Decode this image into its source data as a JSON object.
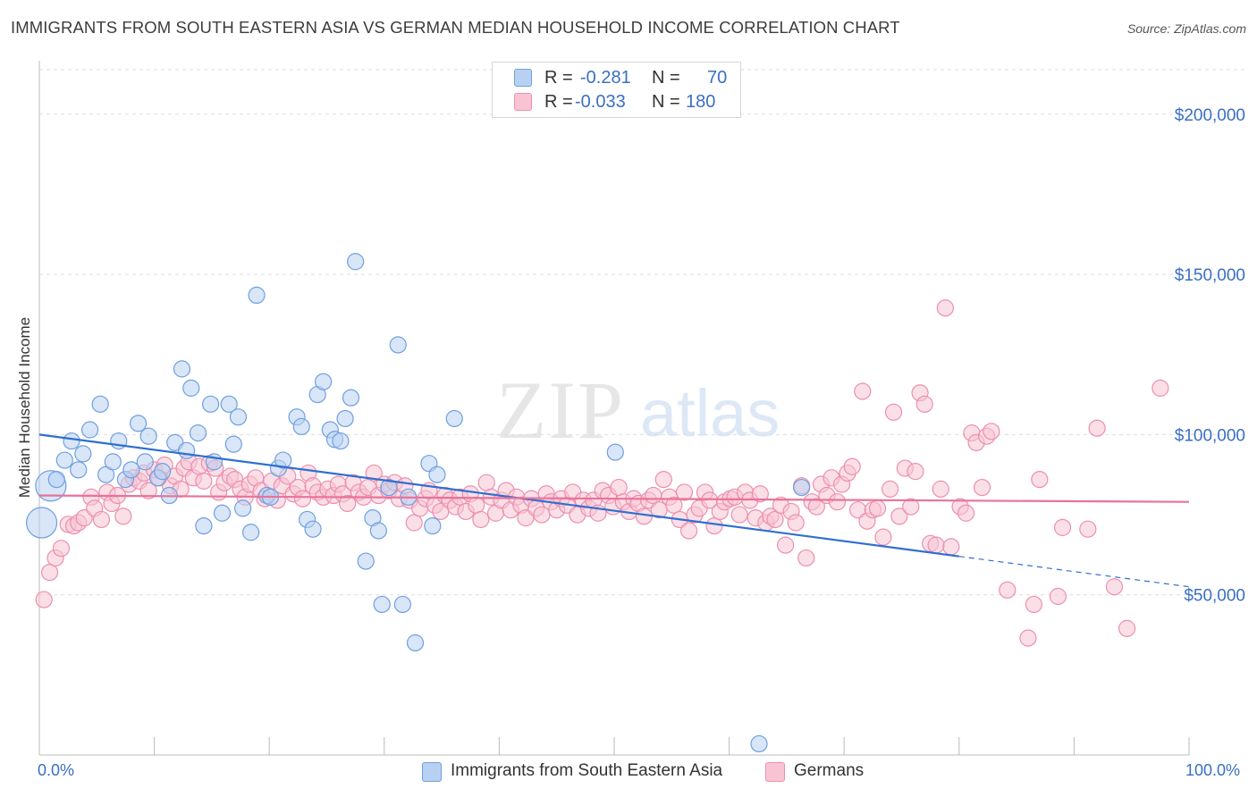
{
  "title": "IMMIGRANTS FROM SOUTH EASTERN ASIA VS GERMAN MEDIAN HOUSEHOLD INCOME CORRELATION CHART",
  "source": "Source: ZipAtlas.com",
  "watermark": {
    "zip": "ZIP",
    "atlas": "atlas"
  },
  "legend": {
    "rows": [
      {
        "r_label": "R =",
        "r_value": "-0.281",
        "n_label": "N =",
        "n_value": "70",
        "fill": "#b8d1f3",
        "stroke": "#6f9fe0"
      },
      {
        "r_label": "R =",
        "r_value": "-0.033",
        "n_label": "N =",
        "n_value": "180",
        "fill": "#f8c4d4",
        "stroke": "#ec8fae"
      }
    ]
  },
  "bottom_legend": [
    {
      "label": "Immigrants from South Eastern Asia",
      "fill": "#b8d1f3",
      "stroke": "#6f9fe0"
    },
    {
      "label": "Germans",
      "fill": "#f8c4d4",
      "stroke": "#ec8fae"
    }
  ],
  "chart_data": {
    "type": "scatter",
    "title": "IMMIGRANTS FROM SOUTH EASTERN ASIA VS GERMAN MEDIAN HOUSEHOLD INCOME CORRELATION CHART",
    "xlabel": "",
    "ylabel": "Median Household Income",
    "xlim": [
      0,
      100
    ],
    "ylim": [
      0,
      215000
    ],
    "x_tick_labels": {
      "left": "0.0%",
      "right": "100.0%"
    },
    "y_ticks": [
      {
        "value": 50000,
        "label": "$50,000"
      },
      {
        "value": 100000,
        "label": "$100,000"
      },
      {
        "value": 150000,
        "label": "$150,000"
      },
      {
        "value": 200000,
        "label": "$200,000"
      }
    ],
    "grid": true,
    "colors": {
      "blue_fill": "#b8d1f3",
      "blue_stroke": "#6f9fe0",
      "blue_line": "#2f6fd0",
      "pink_fill": "#f8c4d4",
      "pink_stroke": "#ec8fae",
      "pink_line": "#e8729a",
      "grid": "#dddddd",
      "axis": "#bbbbbb",
      "tick_text": "#3a6fc4"
    },
    "series": [
      {
        "name": "Immigrants from South Eastern Asia",
        "color": "blue",
        "trend": {
          "x0": 0,
          "y0": 100000,
          "x1": 80,
          "y1": 62000,
          "dash_to_x": 100,
          "dash_to_y": 52500
        },
        "points": [
          [
            0.2,
            72500,
            2
          ],
          [
            1.0,
            84000,
            2
          ],
          [
            1.5,
            86000,
            1
          ],
          [
            2.2,
            92000,
            1
          ],
          [
            3.4,
            89000,
            1
          ],
          [
            2.8,
            98000,
            1
          ],
          [
            3.8,
            94000,
            1
          ],
          [
            4.4,
            101500,
            1
          ],
          [
            5.3,
            109500,
            1
          ],
          [
            5.8,
            87500,
            1
          ],
          [
            6.4,
            91500,
            1
          ],
          [
            6.9,
            98000,
            1
          ],
          [
            7.5,
            86000,
            1
          ],
          [
            8.0,
            89000,
            1
          ],
          [
            8.6,
            103500,
            1
          ],
          [
            9.5,
            99500,
            1
          ],
          [
            9.2,
            91500,
            1
          ],
          [
            10.3,
            86500,
            1
          ],
          [
            10.7,
            88500,
            1
          ],
          [
            11.3,
            81000,
            1
          ],
          [
            11.8,
            97500,
            1
          ],
          [
            12.4,
            120500,
            1
          ],
          [
            12.8,
            95000,
            1
          ],
          [
            13.2,
            114500,
            1
          ],
          [
            13.8,
            100500,
            1
          ],
          [
            14.3,
            71500,
            1
          ],
          [
            14.9,
            109500,
            1
          ],
          [
            15.2,
            91500,
            1
          ],
          [
            15.9,
            75500,
            1
          ],
          [
            16.5,
            109500,
            1
          ],
          [
            16.9,
            97000,
            1
          ],
          [
            17.3,
            105500,
            1
          ],
          [
            17.7,
            77000,
            1
          ],
          [
            18.4,
            69500,
            1
          ],
          [
            18.9,
            143500,
            1
          ],
          [
            19.8,
            81000,
            1
          ],
          [
            20.1,
            80500,
            1
          ],
          [
            20.8,
            89500,
            1
          ],
          [
            21.2,
            92000,
            1
          ],
          [
            22.4,
            105500,
            1
          ],
          [
            22.8,
            102500,
            1
          ],
          [
            23.3,
            73500,
            1
          ],
          [
            23.8,
            70500,
            1
          ],
          [
            24.2,
            112500,
            1
          ],
          [
            24.7,
            116500,
            1
          ],
          [
            25.3,
            101500,
            1
          ],
          [
            25.7,
            98500,
            1
          ],
          [
            26.2,
            98000,
            1
          ],
          [
            26.6,
            105000,
            1
          ],
          [
            27.1,
            111500,
            1
          ],
          [
            27.5,
            154000,
            1
          ],
          [
            28.4,
            60500,
            1
          ],
          [
            29.0,
            74000,
            1
          ],
          [
            29.5,
            70000,
            1
          ],
          [
            29.8,
            47000,
            1
          ],
          [
            30.4,
            83500,
            1
          ],
          [
            31.2,
            128000,
            1
          ],
          [
            31.6,
            47000,
            1
          ],
          [
            32.1,
            80500,
            1
          ],
          [
            32.7,
            35000,
            1
          ],
          [
            33.9,
            91000,
            1
          ],
          [
            34.2,
            71500,
            1
          ],
          [
            34.6,
            87500,
            1
          ],
          [
            36.1,
            105000,
            1
          ],
          [
            50.1,
            94500,
            1
          ],
          [
            62.6,
            3500,
            1
          ],
          [
            66.3,
            83500,
            1
          ]
        ]
      },
      {
        "name": "Germans",
        "color": "pink",
        "trend": {
          "x0": 0,
          "y0": 81000,
          "x1": 100,
          "y1": 79000
        },
        "points": [
          [
            0.4,
            48500
          ],
          [
            0.9,
            57000
          ],
          [
            1.4,
            61500
          ],
          [
            1.9,
            64500
          ],
          [
            2.5,
            72000
          ],
          [
            3.0,
            71500
          ],
          [
            3.4,
            72500
          ],
          [
            3.9,
            74000
          ],
          [
            4.5,
            80500
          ],
          [
            4.8,
            77000
          ],
          [
            5.4,
            73500
          ],
          [
            5.9,
            82000
          ],
          [
            6.3,
            78500
          ],
          [
            6.8,
            81000
          ],
          [
            7.3,
            74500
          ],
          [
            7.8,
            84500
          ],
          [
            8.2,
            86500
          ],
          [
            8.7,
            85500
          ],
          [
            9.1,
            88000
          ],
          [
            9.5,
            82500
          ],
          [
            10.0,
            89000
          ],
          [
            10.4,
            86500
          ],
          [
            10.9,
            90500
          ],
          [
            11.4,
            84000
          ],
          [
            11.8,
            87000
          ],
          [
            12.3,
            83000
          ],
          [
            12.6,
            89500
          ],
          [
            13.0,
            91500
          ],
          [
            13.4,
            86500
          ],
          [
            13.9,
            90000
          ],
          [
            14.3,
            85500
          ],
          [
            14.8,
            91000
          ],
          [
            15.3,
            89500
          ],
          [
            15.6,
            82000
          ],
          [
            16.1,
            85000
          ],
          [
            16.6,
            87000
          ],
          [
            17.0,
            86000
          ],
          [
            17.5,
            83000
          ],
          [
            17.9,
            80500
          ],
          [
            18.3,
            84500
          ],
          [
            18.8,
            86500
          ],
          [
            19.3,
            82500
          ],
          [
            19.6,
            80000
          ],
          [
            20.2,
            85500
          ],
          [
            20.7,
            79500
          ],
          [
            21.1,
            84000
          ],
          [
            21.6,
            87000
          ],
          [
            22.1,
            81500
          ],
          [
            22.5,
            83500
          ],
          [
            22.9,
            80000
          ],
          [
            23.4,
            88000
          ],
          [
            23.8,
            84000
          ],
          [
            24.2,
            82000
          ],
          [
            24.7,
            80500
          ],
          [
            25.1,
            83000
          ],
          [
            25.6,
            81000
          ],
          [
            26.0,
            84500
          ],
          [
            26.4,
            81500
          ],
          [
            26.8,
            78500
          ],
          [
            27.3,
            85000
          ],
          [
            27.8,
            82000
          ],
          [
            28.2,
            80500
          ],
          [
            28.6,
            83500
          ],
          [
            29.1,
            88000
          ],
          [
            29.5,
            81000
          ],
          [
            30.0,
            84500
          ],
          [
            30.4,
            82500
          ],
          [
            30.9,
            85000
          ],
          [
            31.3,
            80000
          ],
          [
            31.8,
            84000
          ],
          [
            32.2,
            79500
          ],
          [
            32.6,
            72500
          ],
          [
            33.1,
            77000
          ],
          [
            33.6,
            80000
          ],
          [
            33.9,
            82500
          ],
          [
            34.4,
            78000
          ],
          [
            34.9,
            76000
          ],
          [
            35.3,
            81000
          ],
          [
            35.7,
            79500
          ],
          [
            36.2,
            77500
          ],
          [
            36.6,
            80500
          ],
          [
            37.1,
            76000
          ],
          [
            37.5,
            81500
          ],
          [
            38.0,
            78000
          ],
          [
            38.4,
            73500
          ],
          [
            38.9,
            85000
          ],
          [
            39.3,
            80500
          ],
          [
            39.7,
            75500
          ],
          [
            40.2,
            79500
          ],
          [
            40.6,
            82500
          ],
          [
            41.0,
            76500
          ],
          [
            41.5,
            80500
          ],
          [
            41.9,
            78000
          ],
          [
            42.3,
            74000
          ],
          [
            42.8,
            80000
          ],
          [
            43.2,
            77000
          ],
          [
            43.7,
            75000
          ],
          [
            44.1,
            81500
          ],
          [
            44.5,
            79000
          ],
          [
            45.0,
            76500
          ],
          [
            45.4,
            80000
          ],
          [
            45.9,
            78000
          ],
          [
            46.4,
            82000
          ],
          [
            46.8,
            75000
          ],
          [
            47.3,
            79500
          ],
          [
            47.8,
            77000
          ],
          [
            48.2,
            79500
          ],
          [
            48.6,
            75500
          ],
          [
            49.0,
            82500
          ],
          [
            49.5,
            81000
          ],
          [
            49.9,
            77500
          ],
          [
            50.4,
            83500
          ],
          [
            50.8,
            79000
          ],
          [
            51.3,
            76000
          ],
          [
            51.7,
            80000
          ],
          [
            52.1,
            78500
          ],
          [
            52.6,
            74500
          ],
          [
            53.0,
            79500
          ],
          [
            53.4,
            81000
          ],
          [
            53.9,
            76500
          ],
          [
            54.3,
            86000
          ],
          [
            54.8,
            80500
          ],
          [
            55.2,
            78000
          ],
          [
            55.7,
            73500
          ],
          [
            56.1,
            82000
          ],
          [
            56.5,
            70000
          ],
          [
            57.0,
            75000
          ],
          [
            57.4,
            77000
          ],
          [
            57.9,
            82000
          ],
          [
            58.3,
            79500
          ],
          [
            58.7,
            71500
          ],
          [
            59.2,
            76000
          ],
          [
            59.6,
            79000
          ],
          [
            60.1,
            80000
          ],
          [
            60.5,
            80500
          ],
          [
            60.9,
            75000
          ],
          [
            61.4,
            82000
          ],
          [
            61.8,
            79500
          ],
          [
            62.3,
            74000
          ],
          [
            62.7,
            81500
          ],
          [
            63.2,
            72500
          ],
          [
            63.6,
            74500
          ],
          [
            64.0,
            73500
          ],
          [
            64.5,
            78000
          ],
          [
            64.9,
            65500
          ],
          [
            65.4,
            76000
          ],
          [
            65.8,
            72500
          ],
          [
            66.3,
            84000
          ],
          [
            66.7,
            61500
          ],
          [
            67.2,
            79000
          ],
          [
            67.6,
            77500
          ],
          [
            68.0,
            84500
          ],
          [
            68.5,
            81000
          ],
          [
            68.9,
            86500
          ],
          [
            69.4,
            79000
          ],
          [
            69.8,
            84500
          ],
          [
            70.3,
            88000
          ],
          [
            70.7,
            90000
          ],
          [
            71.2,
            76500
          ],
          [
            71.6,
            113500
          ],
          [
            72.0,
            73000
          ],
          [
            72.5,
            76500
          ],
          [
            72.9,
            77000
          ],
          [
            73.4,
            68000
          ],
          [
            74.0,
            83000
          ],
          [
            74.3,
            107000
          ],
          [
            74.8,
            74500
          ],
          [
            75.3,
            89500
          ],
          [
            75.8,
            77500
          ],
          [
            76.2,
            88500
          ],
          [
            76.6,
            113000
          ],
          [
            77.0,
            109500
          ],
          [
            77.5,
            66000
          ],
          [
            78.0,
            65500
          ],
          [
            78.4,
            83000
          ],
          [
            78.8,
            139500
          ],
          [
            79.3,
            65000
          ],
          [
            80.1,
            77500
          ],
          [
            80.6,
            75500
          ],
          [
            81.1,
            100500
          ],
          [
            81.5,
            97500
          ],
          [
            82.0,
            83500
          ],
          [
            82.4,
            99500
          ],
          [
            82.8,
            101000
          ],
          [
            84.2,
            51500
          ],
          [
            86.0,
            36500
          ],
          [
            86.5,
            47000
          ],
          [
            87.0,
            86000
          ],
          [
            88.6,
            49500
          ],
          [
            89.0,
            71000
          ],
          [
            91.2,
            70500
          ],
          [
            92.0,
            102000
          ],
          [
            93.5,
            52500
          ],
          [
            94.6,
            39500
          ],
          [
            97.5,
            114500
          ]
        ]
      }
    ]
  }
}
